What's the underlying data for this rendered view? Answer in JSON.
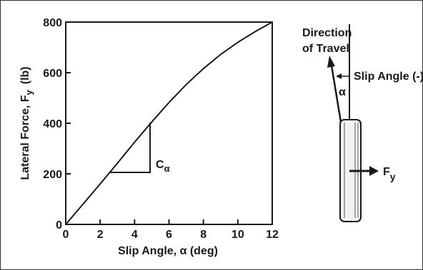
{
  "chart_data": {
    "type": "line",
    "xlabel": "Slip Angle, α  (deg)",
    "ylabel_main": "Lateral Force, F",
    "ylabel_sub": "y",
    "ylabel_unit": "(lb)",
    "xlim": [
      0,
      12
    ],
    "ylim": [
      0,
      800
    ],
    "xticks": [
      "0",
      "2",
      "4",
      "6",
      "8",
      "10",
      "12"
    ],
    "yticks": [
      "0",
      "200",
      "400",
      "600",
      "800"
    ],
    "grid": false,
    "series": [
      {
        "x": [
          0,
          1,
          2,
          3,
          4,
          5,
          6,
          7,
          8,
          9,
          10,
          11,
          12
        ],
        "y": [
          0,
          80,
          160,
          242,
          325,
          405,
          482,
          553,
          616,
          672,
          720,
          762,
          800
        ]
      }
    ],
    "annotations": {
      "stiffness_label": "C",
      "stiffness_sub": "α"
    }
  },
  "diagram": {
    "direction_line1": "Direction",
    "direction_line2": "of Travel",
    "slip_angle": "Slip Angle (-)",
    "alpha": "α",
    "force_label": "F",
    "force_sub": "y"
  }
}
